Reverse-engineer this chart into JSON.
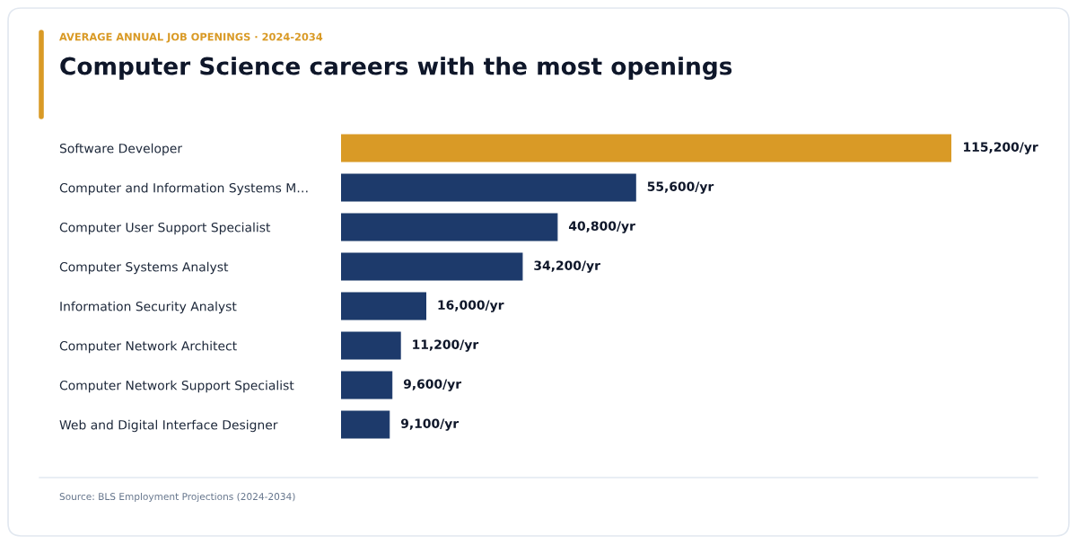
{
  "chart_data": {
    "type": "bar",
    "orientation": "horizontal",
    "subtitle": "AVERAGE ANNUAL JOB OPENINGS · 2024-2034",
    "title": "Computer Science careers with the most openings",
    "categories": [
      "Software Developer",
      "Computer and Information Systems M…",
      "Computer User Support Specialist",
      "Computer Systems Analyst",
      "Information Security Analyst",
      "Computer Network Architect",
      "Computer Network Support Specialist",
      "Web and Digital Interface Designer"
    ],
    "values": [
      115200,
      55600,
      40800,
      34200,
      16000,
      11200,
      9600,
      9100
    ],
    "colors": [
      "#d99a26",
      "#1d3a6b",
      "#1d3a6b",
      "#1d3a6b",
      "#1d3a6b",
      "#1d3a6b",
      "#1d3a6b",
      "#1d3a6b"
    ],
    "value_labels": [
      "115,200/yr",
      "55,600/yr",
      "40,800/yr",
      "34,200/yr",
      "16,000/yr",
      "11,200/yr",
      "9,600/yr",
      "9,100/yr"
    ],
    "tick_labels": "y",
    "annotations": [
      "Source: BLS Employment Projections (2024-2034)"
    ]
  }
}
